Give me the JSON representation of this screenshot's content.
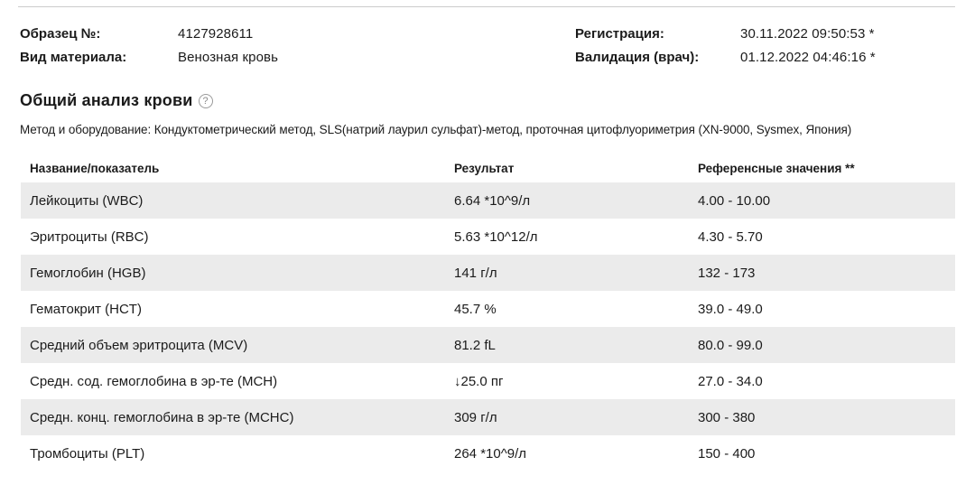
{
  "header": {
    "sample_label": "Образец №:",
    "sample_value": "4127928611",
    "material_label": "Вид материала:",
    "material_value": "Венозная кровь",
    "registration_label": "Регистрация:",
    "registration_value": "30.11.2022 09:50:53 *",
    "validation_label": "Валидация (врач):",
    "validation_value": "01.12.2022 04:46:16 *"
  },
  "section": {
    "title": "Общий анализ крови",
    "help_icon": "?",
    "method": "Метод и оборудование: Кондуктометрический метод, SLS(натрий лаурил сульфат)-метод, проточная цитофлуориметрия (XN-9000, Sysmex, Япония)"
  },
  "table": {
    "columns": {
      "name": "Название/показатель",
      "result": "Результат",
      "reference": "Референсные значения **"
    },
    "rows": [
      {
        "name": "Лейкоциты (WBC)",
        "flag": "",
        "result": "6.64 *10^9/л",
        "reference": "4.00 - 10.00"
      },
      {
        "name": "Эритроциты (RBC)",
        "flag": "",
        "result": "5.63 *10^12/л",
        "reference": "4.30 - 5.70"
      },
      {
        "name": "Гемоглобин (HGB)",
        "flag": "",
        "result": "141 г/л",
        "reference": "132 - 173"
      },
      {
        "name": "Гематокрит (HCT)",
        "flag": "",
        "result": "45.7 %",
        "reference": "39.0 - 49.0"
      },
      {
        "name": "Средний объем эритроцита (MCV)",
        "flag": "",
        "result": "81.2 fL",
        "reference": "80.0 - 99.0"
      },
      {
        "name": "Средн. сод. гемоглобина в эр-те (MCH)",
        "flag": "↓",
        "result": "25.0 пг",
        "reference": "27.0 - 34.0"
      },
      {
        "name": "Средн. конц. гемоглобина в эр-те (MCHC)",
        "flag": "",
        "result": "309 г/л",
        "reference": "300 - 380"
      },
      {
        "name": "Тромбоциты (PLT)",
        "flag": "",
        "result": "264 *10^9/л",
        "reference": "150 - 400"
      }
    ]
  }
}
